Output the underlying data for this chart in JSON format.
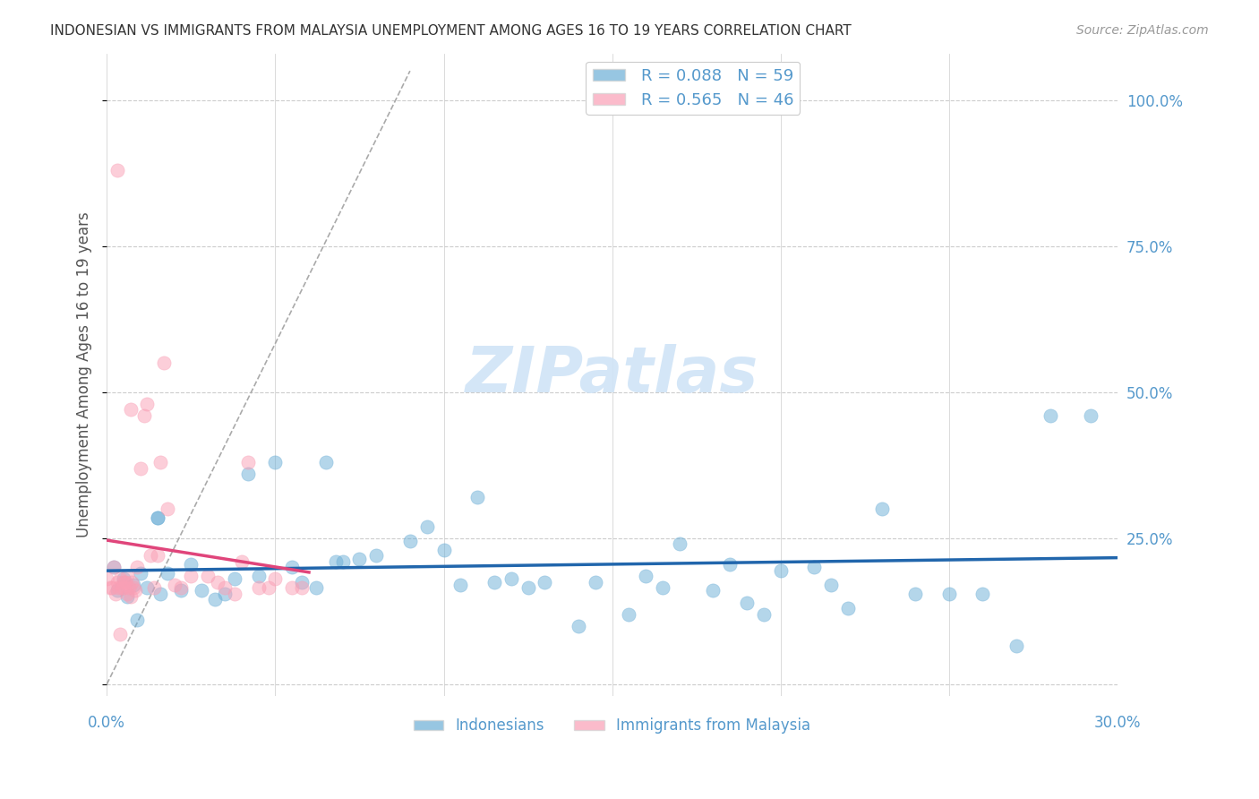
{
  "title": "INDONESIAN VS IMMIGRANTS FROM MALAYSIA UNEMPLOYMENT AMONG AGES 16 TO 19 YEARS CORRELATION CHART",
  "source": "Source: ZipAtlas.com",
  "xlabel": "",
  "ylabel": "Unemployment Among Ages 16 to 19 years",
  "xlim": [
    0.0,
    0.3
  ],
  "ylim": [
    -0.02,
    1.08
  ],
  "xticks": [
    0.0,
    0.05,
    0.1,
    0.15,
    0.2,
    0.25,
    0.3
  ],
  "xtick_labels": [
    "0.0%",
    "",
    "",
    "",
    "",
    "",
    "30.0%"
  ],
  "ytick_positions": [
    0.0,
    0.25,
    0.5,
    0.75,
    1.0
  ],
  "ytick_labels": [
    "",
    "25.0%",
    "50.0%",
    "75.0%",
    "100.0%"
  ],
  "legend1_label": "R = 0.088   N = 59",
  "legend2_label": "R = 0.565   N = 46",
  "legend_xlabel1": "Indonesians",
  "legend_xlabel2": "Immigrants from Malaysia",
  "blue_color": "#6baed6",
  "pink_color": "#fa9fb5",
  "blue_line_color": "#2166ac",
  "pink_line_color": "#e0457b",
  "r_blue": 0.088,
  "n_blue": 59,
  "r_pink": 0.565,
  "n_pink": 46,
  "blue_scatter_x": [
    0.002,
    0.015,
    0.015,
    0.042,
    0.055,
    0.062,
    0.065,
    0.068,
    0.005,
    0.008,
    0.01,
    0.012,
    0.018,
    0.022,
    0.025,
    0.028,
    0.032,
    0.038,
    0.045,
    0.05,
    0.058,
    0.07,
    0.075,
    0.08,
    0.09,
    0.095,
    0.1,
    0.105,
    0.11,
    0.115,
    0.12,
    0.125,
    0.13,
    0.14,
    0.145,
    0.155,
    0.16,
    0.165,
    0.17,
    0.18,
    0.185,
    0.19,
    0.195,
    0.2,
    0.21,
    0.215,
    0.22,
    0.23,
    0.24,
    0.25,
    0.26,
    0.27,
    0.28,
    0.003,
    0.006,
    0.009,
    0.016,
    0.035,
    0.292
  ],
  "blue_scatter_y": [
    0.2,
    0.285,
    0.285,
    0.36,
    0.2,
    0.165,
    0.38,
    0.21,
    0.18,
    0.17,
    0.19,
    0.165,
    0.19,
    0.16,
    0.205,
    0.16,
    0.145,
    0.18,
    0.185,
    0.38,
    0.175,
    0.21,
    0.215,
    0.22,
    0.245,
    0.27,
    0.23,
    0.17,
    0.32,
    0.175,
    0.18,
    0.165,
    0.175,
    0.1,
    0.175,
    0.12,
    0.185,
    0.165,
    0.24,
    0.16,
    0.205,
    0.14,
    0.12,
    0.195,
    0.2,
    0.17,
    0.13,
    0.3,
    0.155,
    0.155,
    0.155,
    0.065,
    0.46,
    0.16,
    0.15,
    0.11,
    0.155,
    0.155,
    0.46
  ],
  "pink_scatter_x": [
    0.0,
    0.001,
    0.002,
    0.003,
    0.004,
    0.005,
    0.006,
    0.007,
    0.008,
    0.009,
    0.01,
    0.011,
    0.012,
    0.013,
    0.014,
    0.015,
    0.016,
    0.017,
    0.018,
    0.02,
    0.022,
    0.025,
    0.03,
    0.033,
    0.035,
    0.038,
    0.04,
    0.042,
    0.045,
    0.048,
    0.05,
    0.055,
    0.058,
    0.003,
    0.004,
    0.005,
    0.006,
    0.007,
    0.0015,
    0.0025,
    0.0035,
    0.0045,
    0.0055,
    0.0065,
    0.0075,
    0.0085
  ],
  "pink_scatter_y": [
    0.18,
    0.165,
    0.2,
    0.175,
    0.18,
    0.175,
    0.185,
    0.47,
    0.165,
    0.2,
    0.37,
    0.46,
    0.48,
    0.22,
    0.165,
    0.22,
    0.38,
    0.55,
    0.3,
    0.17,
    0.165,
    0.185,
    0.185,
    0.175,
    0.165,
    0.155,
    0.21,
    0.38,
    0.165,
    0.165,
    0.18,
    0.165,
    0.165,
    0.88,
    0.085,
    0.165,
    0.155,
    0.15,
    0.165,
    0.155,
    0.165,
    0.165,
    0.175,
    0.165,
    0.175,
    0.16
  ],
  "background_color": "#ffffff",
  "grid_color": "#cccccc",
  "title_color": "#333333",
  "axis_color": "#5599cc",
  "watermark_text": "ZIPatlas",
  "watermark_color": "#d0e4f7",
  "watermark_fontsize": 52
}
